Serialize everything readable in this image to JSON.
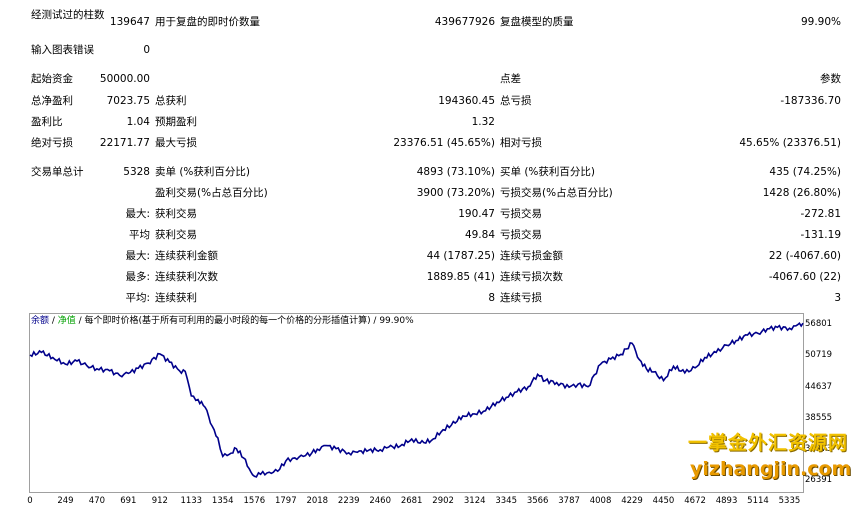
{
  "stats": {
    "bars_tested_label": "经测试过的柱数",
    "bars_tested_value": "139647",
    "ticks_label": "用于复盘的即时价数量",
    "ticks_value": "439677926",
    "quality_label": "复盘模型的质量",
    "quality_value": "99.90%",
    "mismatch_label": "输入图表错误",
    "mismatch_value": "0",
    "initial_deposit_label": "起始资金",
    "initial_deposit_value": "50000.00",
    "spread_label": "点差",
    "spread_value": "参数",
    "net_profit_label": "总净盈利",
    "net_profit_value": "7023.75",
    "gross_profit_label": "总获利",
    "gross_profit_value": "194360.45",
    "gross_loss_label": "总亏损",
    "gross_loss_value": "-187336.70",
    "profit_factor_label": "盈利比",
    "profit_factor_value": "1.04",
    "expected_payoff_label": "预期盈利",
    "expected_payoff_value": "1.32",
    "abs_drawdown_label": "绝对亏损",
    "abs_drawdown_value": "22171.77",
    "max_drawdown_label": "最大亏损",
    "max_drawdown_value": "23376.51 (45.65%)",
    "rel_drawdown_label": "相对亏损",
    "rel_drawdown_value": "45.65% (23376.51)",
    "total_trades_label": "交易单总计",
    "total_trades_value": "5328",
    "short_label": "卖单 (%获利百分比)",
    "short_value": "4893 (73.10%)",
    "long_label": "买单 (%获利百分比)",
    "long_value": "435 (74.25%)",
    "profit_trades_label": "盈利交易(%占总百分比)",
    "profit_trades_value": "3900 (73.20%)",
    "loss_trades_label": "亏损交易(%占总百分比)",
    "loss_trades_value": "1428 (26.80%)",
    "largest_prefix": "最大:",
    "largest_profit_label": "获利交易",
    "largest_profit_value": "190.47",
    "largest_loss_label": "亏损交易",
    "largest_loss_value": "-272.81",
    "average_prefix": "平均",
    "avg_profit_label": "获利交易",
    "avg_profit_value": "49.84",
    "avg_loss_label": "亏损交易",
    "avg_loss_value": "-131.19",
    "max_prefix": "最大:",
    "max_consec_wins_money_label": "连续获利金额",
    "max_consec_wins_money_value": "44 (1787.25)",
    "max_consec_losses_money_label": "连续亏损金额",
    "max_consec_losses_money_value": "22 (-4067.60)",
    "maximal_prefix": "最多:",
    "maximal_consec_profit_label": "连续获利次数",
    "maximal_consec_profit_value": "1889.85 (41)",
    "maximal_consec_loss_label": "连续亏损次数",
    "maximal_consec_loss_value": "-4067.60 (22)",
    "avg_consec_prefix": "平均:",
    "avg_consec_wins_label": "连续获利",
    "avg_consec_wins_value": "8",
    "avg_consec_losses_label": "连续亏损",
    "avg_consec_losses_value": "3"
  },
  "chart_legend": {
    "balance": "余额",
    "sep1": " / ",
    "equity": "净值",
    "rest": " / 每个即时价格(基于所有可利用的最小时段的每一个价格的分形插值计算) / 99.90%"
  },
  "chart_data": {
    "type": "line",
    "y_ticks": [
      "56801",
      "50719",
      "44637",
      "38555",
      "32473",
      "26391"
    ],
    "x_ticks": [
      "0",
      "249",
      "470",
      "691",
      "912",
      "1133",
      "1354",
      "1576",
      "1797",
      "2018",
      "2239",
      "2460",
      "2681",
      "2902",
      "3124",
      "3345",
      "3566",
      "3787",
      "4008",
      "4229",
      "4450",
      "4672",
      "4893",
      "5114",
      "5335"
    ],
    "ylim": [
      26391,
      58800
    ],
    "xlim": [
      0,
      5430
    ],
    "series": [
      {
        "name": "余额",
        "color": "#00008b",
        "x": [
          0,
          80,
          160,
          249,
          330,
          400,
          470,
          560,
          630,
          691,
          760,
          830,
          912,
          980,
          1050,
          1090,
          1133,
          1180,
          1230,
          1280,
          1320,
          1354,
          1400,
          1450,
          1500,
          1540,
          1576,
          1620,
          1680,
          1740,
          1797,
          1860,
          1920,
          1980,
          2018,
          2080,
          2150,
          2239,
          2300,
          2380,
          2460,
          2520,
          2600,
          2681,
          2740,
          2820,
          2902,
          2960,
          3040,
          3124,
          3200,
          3280,
          3345,
          3420,
          3500,
          3566,
          3620,
          3700,
          3787,
          3850,
          3920,
          4008,
          4080,
          4150,
          4229,
          4280,
          4330,
          4380,
          4450,
          4520,
          4600,
          4672,
          4740,
          4820,
          4893,
          4960,
          5040,
          5114,
          5180,
          5250,
          5335,
          5380,
          5430
        ],
        "y": [
          51000,
          51500,
          50500,
          49200,
          49800,
          48900,
          48300,
          47900,
          47000,
          47400,
          48400,
          49400,
          51200,
          49600,
          47900,
          47800,
          43000,
          42300,
          40800,
          37100,
          34800,
          31200,
          31600,
          32700,
          30900,
          28800,
          27300,
          27700,
          28100,
          28300,
          30300,
          30900,
          31200,
          31900,
          32600,
          33300,
          32700,
          31900,
          32000,
          32400,
          32500,
          33000,
          33200,
          34600,
          33800,
          34300,
          36400,
          37300,
          39100,
          39500,
          40100,
          41800,
          42700,
          43800,
          44800,
          47200,
          46000,
          45600,
          44700,
          45300,
          44800,
          49200,
          50200,
          51100,
          53300,
          50100,
          48300,
          47700,
          46000,
          48800,
          47500,
          48500,
          50500,
          51500,
          52900,
          53800,
          54900,
          55200,
          56100,
          56400,
          56200,
          56700,
          57200
        ]
      },
      {
        "name": "净值",
        "color": "#00a000",
        "x": [],
        "y": []
      }
    ]
  },
  "watermark": {
    "line1": "一掌金外汇资源网",
    "line2": "yizhangjin.com"
  }
}
